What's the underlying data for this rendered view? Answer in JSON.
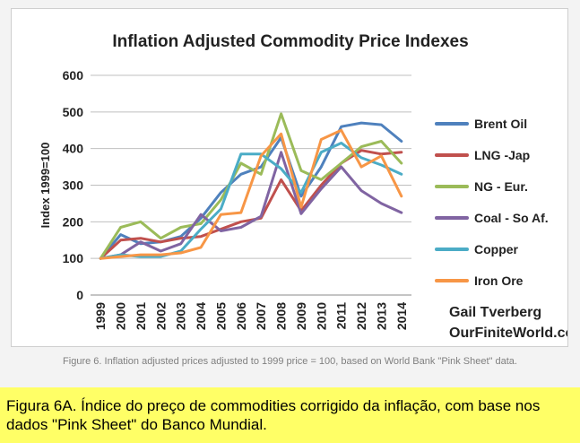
{
  "chart_data": {
    "type": "line",
    "title": "Inflation Adjusted Commodity Price Indexes",
    "xlabel": "",
    "ylabel": "Index 1999=100",
    "ylim": [
      0,
      600
    ],
    "yticks": [
      0,
      100,
      200,
      300,
      400,
      500,
      600
    ],
    "grid": true,
    "legend_position": "right",
    "categories": [
      "1999",
      "2000",
      "2001",
      "2002",
      "2003",
      "2004",
      "2005",
      "2006",
      "2007",
      "2008",
      "2009",
      "2010",
      "2011",
      "2012",
      "2013",
      "2014"
    ],
    "series": [
      {
        "name": "Brent Oil",
        "color": "#4f81bd",
        "values": [
          100,
          165,
          140,
          145,
          160,
          210,
          280,
          330,
          350,
          430,
          270,
          350,
          460,
          470,
          465,
          420
        ]
      },
      {
        "name": "LNG -Jap",
        "color": "#c0504d",
        "values": [
          100,
          150,
          155,
          145,
          155,
          160,
          180,
          200,
          210,
          315,
          230,
          300,
          360,
          395,
          385,
          390
        ]
      },
      {
        "name": "NG - Eur.",
        "color": "#9bbb59",
        "values": [
          100,
          185,
          200,
          155,
          185,
          195,
          260,
          360,
          330,
          495,
          340,
          315,
          360,
          405,
          420,
          360
        ]
      },
      {
        "name": "Coal - So Af.",
        "color": "#8064a2",
        "values": [
          100,
          110,
          145,
          120,
          140,
          220,
          175,
          185,
          215,
          390,
          222,
          290,
          350,
          285,
          250,
          225
        ]
      },
      {
        "name": "Copper",
        "color": "#4bacc6",
        "values": [
          100,
          110,
          105,
          105,
          120,
          180,
          235,
          385,
          385,
          345,
          280,
          390,
          415,
          375,
          355,
          330
        ]
      },
      {
        "name": "Iron Ore",
        "color": "#f79646",
        "values": [
          100,
          105,
          110,
          110,
          115,
          130,
          220,
          225,
          380,
          440,
          240,
          425,
          450,
          350,
          380,
          270
        ]
      }
    ],
    "annotation_lines": [
      "Gail Tverberg",
      "OurFiniteWorld.com"
    ]
  },
  "captions": {
    "figure": "Figure 6. Inflation adjusted prices adjusted to 1999 price = 100, based on World Bank \"Pink Sheet\" data.",
    "portuguese": "Figura 6A.  Índice do preço de commodities corrigido da inflação, com base nos dados \"Pink Sheet\" do Banco Mundial."
  }
}
